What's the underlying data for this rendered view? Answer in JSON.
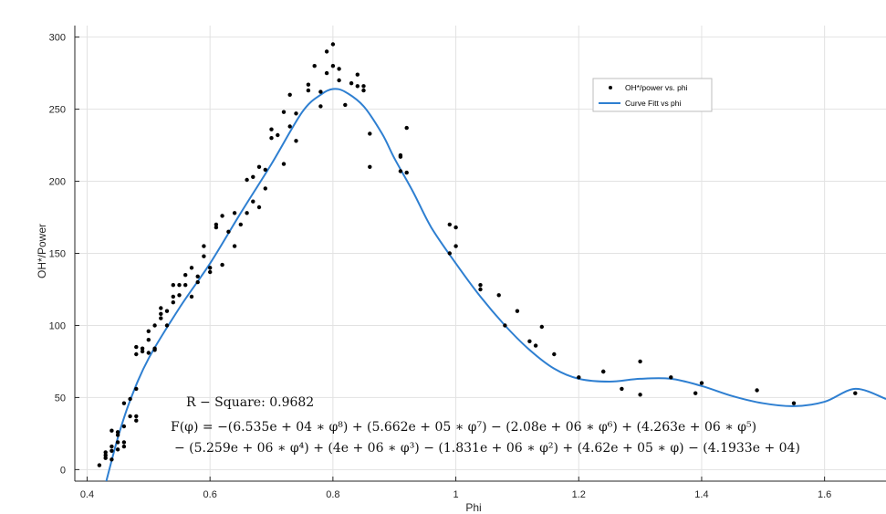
{
  "chart_data": {
    "type": "scatter",
    "xlabel": "Phi",
    "ylabel": "OH*/Power",
    "xlim": [
      0.38,
      1.7
    ],
    "ylim": [
      -8,
      308
    ],
    "xticks": [
      0.4,
      0.6,
      0.8,
      1,
      1.2,
      1.4,
      1.6
    ],
    "xtick_labels": [
      "0.4",
      "0.6",
      "0.8",
      "1",
      "1.2",
      "1.4",
      "1.6"
    ],
    "yticks": [
      0,
      50,
      100,
      150,
      200,
      250,
      300
    ],
    "ytick_labels": [
      "0",
      "50",
      "100",
      "150",
      "200",
      "250",
      "300"
    ],
    "grid": true,
    "legend_position": "top-right",
    "colors": {
      "points": "#000000",
      "fit": "#2e7fd1",
      "grid": "#e2e2e2",
      "axis": "#262626"
    },
    "series": [
      {
        "name": "OH*/power vs. phi",
        "kind": "scatter",
        "x": [
          0.42,
          0.43,
          0.43,
          0.43,
          0.44,
          0.44,
          0.44,
          0.44,
          0.45,
          0.45,
          0.45,
          0.45,
          0.46,
          0.46,
          0.46,
          0.46,
          0.47,
          0.47,
          0.48,
          0.48,
          0.48,
          0.48,
          0.48,
          0.49,
          0.49,
          0.5,
          0.5,
          0.5,
          0.51,
          0.51,
          0.51,
          0.52,
          0.52,
          0.52,
          0.53,
          0.53,
          0.54,
          0.54,
          0.54,
          0.55,
          0.55,
          0.56,
          0.56,
          0.57,
          0.57,
          0.58,
          0.58,
          0.59,
          0.59,
          0.6,
          0.6,
          0.61,
          0.61,
          0.62,
          0.62,
          0.63,
          0.64,
          0.64,
          0.65,
          0.66,
          0.66,
          0.67,
          0.67,
          0.68,
          0.68,
          0.69,
          0.69,
          0.7,
          0.7,
          0.71,
          0.72,
          0.72,
          0.73,
          0.73,
          0.74,
          0.74,
          0.76,
          0.76,
          0.77,
          0.78,
          0.78,
          0.79,
          0.79,
          0.8,
          0.8,
          0.81,
          0.81,
          0.82,
          0.83,
          0.84,
          0.84,
          0.85,
          0.85,
          0.86,
          0.86,
          0.91,
          0.91,
          0.91,
          0.92,
          0.92,
          0.99,
          0.99,
          1.0,
          1.0,
          1.04,
          1.04,
          1.07,
          1.08,
          1.1,
          1.12,
          1.13,
          1.14,
          1.16,
          1.2,
          1.24,
          1.24,
          1.27,
          1.3,
          1.3,
          1.35,
          1.39,
          1.4,
          1.49,
          1.55,
          1.65
        ],
        "y": [
          3,
          8,
          10,
          12,
          7,
          13,
          16,
          27,
          19,
          24,
          26,
          14,
          16,
          19,
          30,
          46,
          37,
          49,
          34,
          37,
          56,
          80,
          85,
          84,
          82,
          90,
          96,
          81,
          83,
          100,
          84,
          105,
          108,
          112,
          110,
          100,
          116,
          120,
          128,
          128,
          121,
          135,
          128,
          140,
          120,
          130,
          134,
          148,
          155,
          137,
          140,
          170,
          168,
          142,
          176,
          165,
          178,
          155,
          170,
          178,
          201,
          203,
          186,
          210,
          182,
          208,
          195,
          230,
          236,
          232,
          248,
          212,
          260,
          238,
          247,
          228,
          263,
          267,
          280,
          252,
          262,
          290,
          275,
          280,
          295,
          270,
          278,
          253,
          268,
          274,
          266,
          263,
          266,
          233,
          210,
          207,
          217,
          218,
          237,
          206,
          150,
          170,
          155,
          168,
          128,
          125,
          121,
          100,
          110,
          89,
          86,
          99,
          80,
          64,
          68,
          68,
          56,
          75,
          52,
          64,
          53,
          60,
          55,
          46,
          53
        ]
      },
      {
        "name": "Curve Fitt vs phi",
        "kind": "line",
        "x": [
          0.43,
          0.45,
          0.47,
          0.5,
          0.55,
          0.6,
          0.65,
          0.7,
          0.75,
          0.78,
          0.8,
          0.82,
          0.85,
          0.88,
          0.9,
          0.93,
          0.96,
          1.0,
          1.04,
          1.08,
          1.12,
          1.16,
          1.2,
          1.25,
          1.3,
          1.35,
          1.4,
          1.45,
          1.5,
          1.55,
          1.6,
          1.65,
          1.7
        ],
        "y": [
          -10,
          22,
          48,
          77,
          112,
          143,
          178,
          212,
          248,
          260,
          264,
          262,
          252,
          233,
          216,
          193,
          168,
          143,
          120,
          100,
          83,
          70,
          63,
          61,
          63,
          63,
          58,
          51,
          46,
          44,
          47,
          56,
          49
        ]
      }
    ],
    "annotations": {
      "r_square_label": "R − Square: 0.9682",
      "equation_line1": "F(φ) = −(6.535e + 04 ∗ φ⁸) + (5.662e + 05 ∗ φ⁷) − (2.08e + 06 ∗ φ⁶) + (4.263e + 06 ∗ φ⁵)",
      "equation_line2": "− (5.259e + 06 ∗ φ⁴) + (4e + 06 ∗ φ³) − (1.831e + 06 ∗ φ²) + (4.62e + 05 ∗ φ) − (4.1933e + 04)"
    }
  }
}
